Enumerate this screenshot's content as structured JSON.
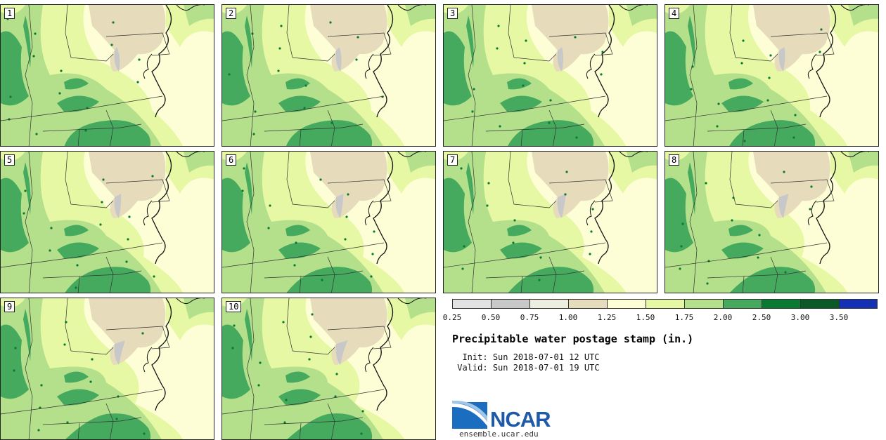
{
  "title": "Precipitable water postage stamp (in.)",
  "init_label": "Init:",
  "init_value": "Sun 2018-07-01 12 UTC",
  "valid_label": "Valid:",
  "valid_value": "Sun 2018-07-01 19 UTC",
  "logo_text": "NCAR",
  "site": "ensemble.ucar.edu",
  "members": [
    "1",
    "2",
    "3",
    "4",
    "5",
    "6",
    "7",
    "8",
    "9",
    "10"
  ],
  "legend": {
    "colors": [
      "#e2e2e2",
      "#c8c8c8",
      "#eeeee0",
      "#e6dcbc",
      "#fefed6",
      "#e6f8a4",
      "#b4e08c",
      "#46aa5e",
      "#0a7a32",
      "#0a5a28",
      "#1430b4"
    ],
    "ticks": [
      "0.25",
      "0.50",
      "0.75",
      "1.00",
      "1.25",
      "1.50",
      "1.75",
      "2.00",
      "2.50",
      "3.00",
      "3.50"
    ]
  }
}
